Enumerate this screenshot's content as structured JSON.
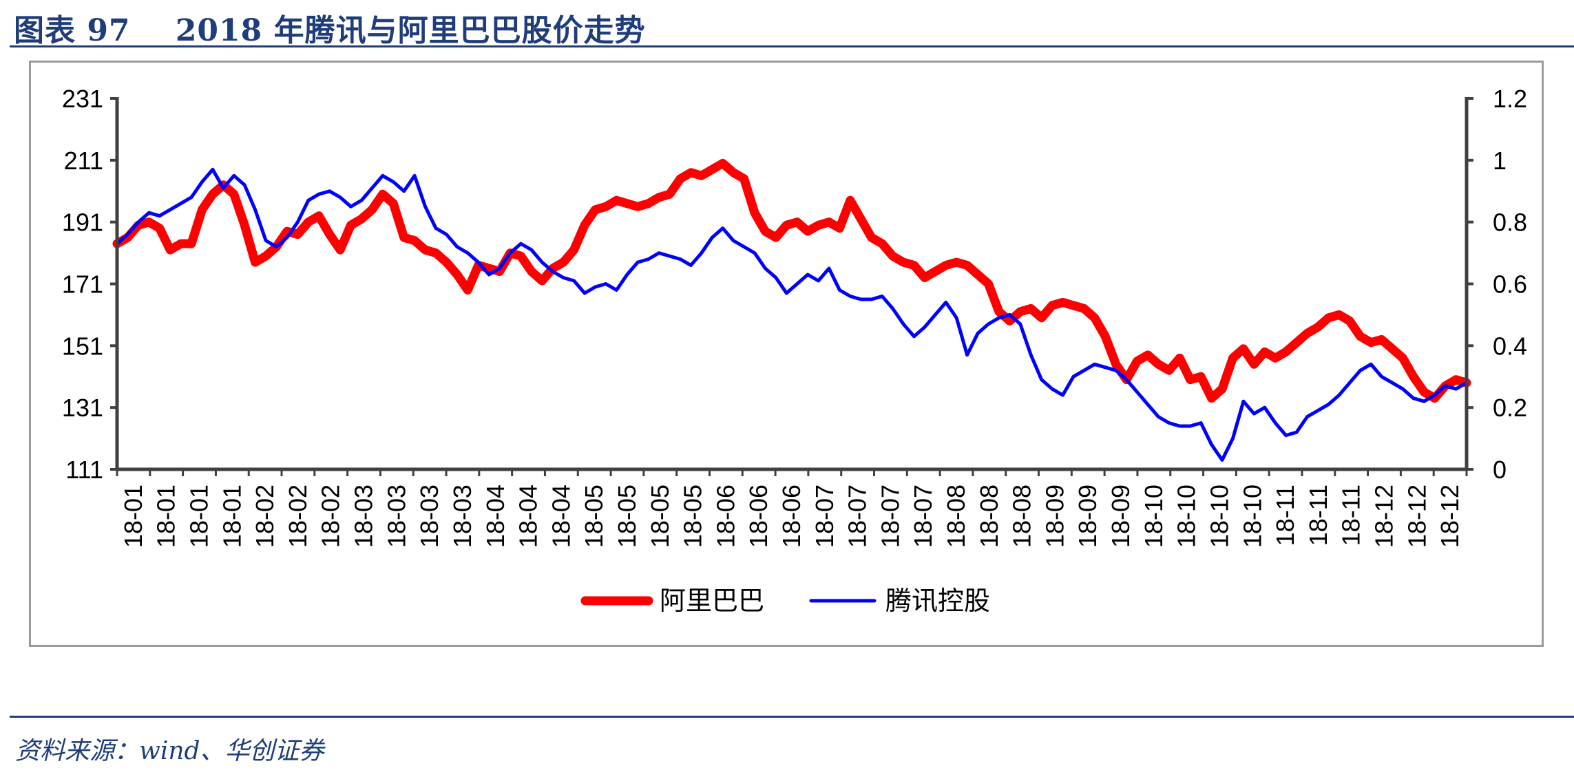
{
  "header": {
    "title": "图表 97    2018 年腾讯与阿里巴巴股价走势"
  },
  "footer": {
    "source": "资料来源：wind、华创证券"
  },
  "colors": {
    "alibaba": "#ff0000",
    "tencent": "#0000ff",
    "axis": "#404040",
    "brand": "#1f3d7a"
  },
  "chart_data": {
    "type": "line",
    "title": "2018 年腾讯与阿里巴巴股价走势",
    "left_axis": {
      "ylim": [
        111,
        231
      ],
      "ticks": [
        "231",
        "211",
        "191",
        "171",
        "151",
        "131",
        "111"
      ]
    },
    "right_axis": {
      "ylim": [
        0,
        1.2
      ],
      "ticks": [
        "1.2",
        "1",
        "0.8",
        "0.6",
        "0.4",
        "0.2",
        "0"
      ]
    },
    "x_ticks": [
      "18-01",
      "18-01",
      "18-01",
      "18-01",
      "18-02",
      "18-02",
      "18-02",
      "18-03",
      "18-03",
      "18-03",
      "18-03",
      "18-04",
      "18-04",
      "18-04",
      "18-05",
      "18-05",
      "18-05",
      "18-05",
      "18-06",
      "18-06",
      "18-06",
      "18-07",
      "18-07",
      "18-07",
      "18-07",
      "18-08",
      "18-08",
      "18-08",
      "18-09",
      "18-09",
      "18-09",
      "18-10",
      "18-10",
      "18-10",
      "18-10",
      "18-11",
      "18-11",
      "18-11",
      "18-12",
      "18-12",
      "18-12"
    ],
    "legend_position": "bottom-center",
    "series": [
      {
        "name": "阿里巴巴",
        "axis": "left",
        "values": [
          184,
          186,
          190,
          191,
          189,
          182,
          184,
          184,
          195,
          200,
          203,
          200,
          190,
          178,
          180,
          183,
          188,
          187,
          191,
          193,
          187,
          182,
          190,
          192,
          195,
          200,
          197,
          186,
          185,
          182,
          181,
          178,
          174,
          169,
          177,
          176,
          175,
          181,
          180,
          175,
          172,
          176,
          178,
          182,
          190,
          195,
          196,
          198,
          197,
          196,
          197,
          199,
          200,
          205,
          207,
          206,
          208,
          210,
          207,
          205,
          194,
          188,
          186,
          190,
          191,
          188,
          190,
          191,
          189,
          198,
          192,
          186,
          184,
          180,
          178,
          177,
          173,
          175,
          177,
          178,
          177,
          174,
          171,
          162,
          159,
          162,
          163,
          160,
          164,
          165,
          164,
          163,
          160,
          154,
          145,
          140,
          146,
          148,
          145,
          143,
          147,
          140,
          141,
          134,
          137,
          147,
          150,
          145,
          149,
          147,
          149,
          152,
          155,
          157,
          160,
          161,
          159,
          154,
          152,
          153,
          150,
          147,
          141,
          136,
          134,
          138,
          140,
          139
        ]
      },
      {
        "name": "腾讯控股",
        "axis": "right",
        "values": [
          0.73,
          0.76,
          0.8,
          0.83,
          0.82,
          0.84,
          0.86,
          0.88,
          0.93,
          0.97,
          0.91,
          0.95,
          0.92,
          0.84,
          0.74,
          0.72,
          0.75,
          0.8,
          0.87,
          0.89,
          0.9,
          0.88,
          0.85,
          0.87,
          0.91,
          0.95,
          0.93,
          0.9,
          0.95,
          0.85,
          0.78,
          0.76,
          0.72,
          0.7,
          0.67,
          0.63,
          0.65,
          0.7,
          0.73,
          0.71,
          0.67,
          0.64,
          0.62,
          0.61,
          0.57,
          0.59,
          0.6,
          0.58,
          0.63,
          0.67,
          0.68,
          0.7,
          0.69,
          0.68,
          0.66,
          0.7,
          0.75,
          0.78,
          0.74,
          0.72,
          0.7,
          0.65,
          0.62,
          0.57,
          0.6,
          0.63,
          0.61,
          0.65,
          0.58,
          0.56,
          0.55,
          0.55,
          0.56,
          0.52,
          0.47,
          0.43,
          0.46,
          0.5,
          0.54,
          0.49,
          0.37,
          0.44,
          0.47,
          0.49,
          0.5,
          0.47,
          0.37,
          0.29,
          0.26,
          0.24,
          0.3,
          0.32,
          0.34,
          0.33,
          0.32,
          0.29,
          0.25,
          0.21,
          0.17,
          0.15,
          0.14,
          0.14,
          0.15,
          0.08,
          0.03,
          0.1,
          0.22,
          0.18,
          0.2,
          0.15,
          0.11,
          0.12,
          0.17,
          0.19,
          0.21,
          0.24,
          0.28,
          0.32,
          0.34,
          0.3,
          0.28,
          0.26,
          0.23,
          0.22,
          0.24,
          0.27,
          0.26,
          0.28
        ]
      }
    ]
  }
}
